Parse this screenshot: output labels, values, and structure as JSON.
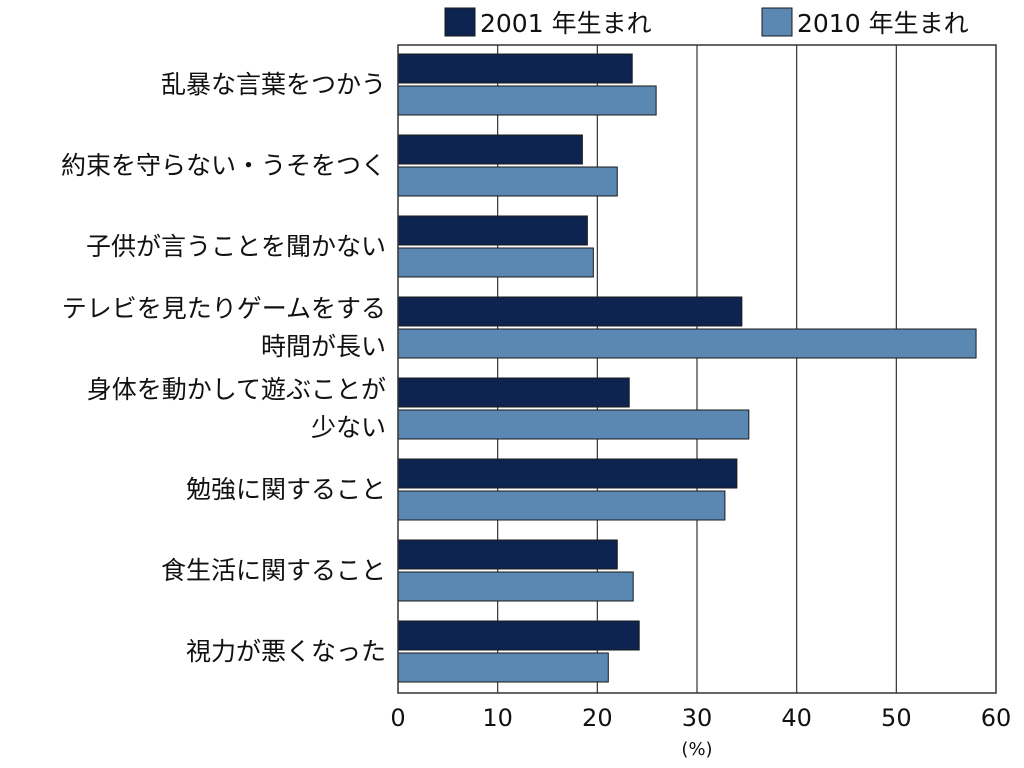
{
  "chart_data": {
    "type": "bar",
    "orientation": "horizontal",
    "categories": [
      [
        "乱暴な言葉をつかう"
      ],
      [
        "約束を守らない・うそをつく"
      ],
      [
        "子供が言うことを聞かない"
      ],
      [
        "テレビを見たりゲームをする",
        "時間が長い"
      ],
      [
        "身体を動かして遊ぶことが",
        "少ない"
      ],
      [
        "勉強に関すること"
      ],
      [
        "食生活に関すること"
      ],
      [
        "視力が悪くなった"
      ]
    ],
    "series": [
      {
        "name": "2001 年生まれ",
        "color": "#0d2451",
        "values": [
          23.5,
          18.5,
          19,
          34.5,
          23.2,
          34,
          22,
          24.2
        ]
      },
      {
        "name": "2010 年生まれ",
        "color": "#5b87b3",
        "values": [
          25.9,
          22,
          19.6,
          58,
          35.2,
          32.8,
          23.6,
          21.1
        ]
      }
    ],
    "xlim": [
      0,
      60
    ],
    "xticks": [
      "0",
      "10",
      "20",
      "30",
      "40",
      "50",
      "60"
    ],
    "xlabel": "(%)",
    "grid": true,
    "legend_position": "top"
  }
}
